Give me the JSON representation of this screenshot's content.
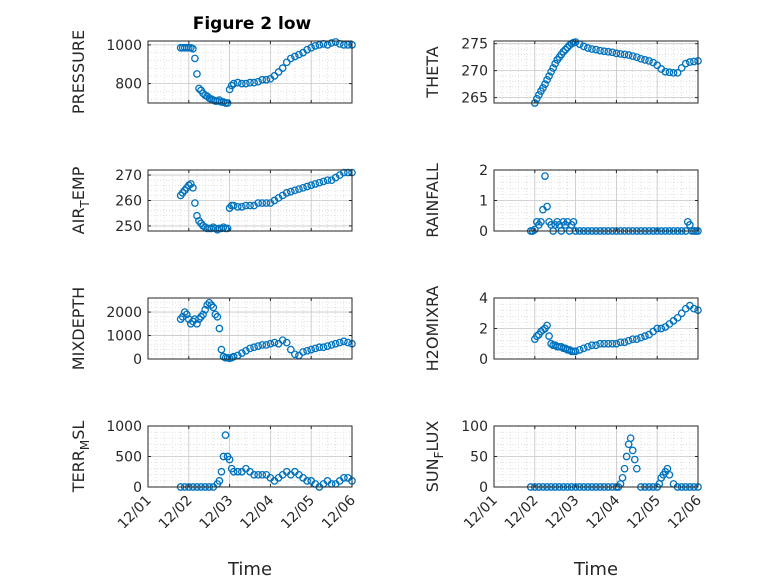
{
  "figure_title": "Figure 2 low",
  "marker_color": "#0072BD",
  "chart_data": [
    {
      "type": "scatter",
      "ylabel": "PRESSURE",
      "ylabel_sub": "",
      "ylim": [
        700,
        1020
      ],
      "yticks": [
        800,
        1000
      ],
      "title": "Figure 2 low",
      "x": [
        1.8,
        1.85,
        1.9,
        1.95,
        2.0,
        2.05,
        2.1,
        2.15,
        2.2,
        2.25,
        2.3,
        2.35,
        2.4,
        2.45,
        2.5,
        2.55,
        2.6,
        2.65,
        2.7,
        2.75,
        2.8,
        2.85,
        2.9,
        2.95,
        3.0,
        3.05,
        3.1,
        3.2,
        3.3,
        3.4,
        3.5,
        3.6,
        3.7,
        3.8,
        3.9,
        4.0,
        4.1,
        4.2,
        4.3,
        4.4,
        4.5,
        4.6,
        4.7,
        4.8,
        4.9,
        5.0,
        5.1,
        5.2,
        5.3,
        5.4,
        5.5,
        5.6,
        5.7,
        5.8,
        5.9,
        6.0
      ],
      "y": [
        985,
        985,
        985,
        985,
        985,
        985,
        980,
        930,
        850,
        775,
        765,
        750,
        740,
        735,
        725,
        720,
        715,
        710,
        710,
        715,
        705,
        705,
        700,
        700,
        770,
        790,
        800,
        805,
        800,
        800,
        805,
        805,
        810,
        820,
        820,
        825,
        840,
        860,
        880,
        910,
        930,
        940,
        950,
        960,
        975,
        985,
        995,
        1000,
        1005,
        1000,
        1010,
        1015,
        1005,
        1000,
        1000,
        1000
      ]
    },
    {
      "type": "scatter",
      "ylabel": "THETA",
      "ylabel_sub": "",
      "ylim": [
        264,
        275.5
      ],
      "yticks": [
        265,
        270,
        275
      ],
      "x": [
        2.0,
        2.05,
        2.1,
        2.15,
        2.2,
        2.25,
        2.3,
        2.35,
        2.4,
        2.45,
        2.5,
        2.55,
        2.6,
        2.65,
        2.7,
        2.75,
        2.8,
        2.85,
        2.9,
        2.95,
        3.0,
        3.1,
        3.2,
        3.3,
        3.4,
        3.5,
        3.6,
        3.7,
        3.8,
        3.9,
        4.0,
        4.1,
        4.2,
        4.3,
        4.4,
        4.5,
        4.6,
        4.7,
        4.8,
        4.9,
        5.0,
        5.1,
        5.2,
        5.3,
        5.4,
        5.5,
        5.6,
        5.7,
        5.8,
        5.9,
        6.0
      ],
      "y": [
        264,
        264.8,
        265.5,
        266.2,
        266.8,
        267.5,
        268.3,
        269,
        269.8,
        270.5,
        271.3,
        272,
        272.5,
        273,
        273.5,
        273.9,
        274.3,
        274.7,
        275,
        275.2,
        275.3,
        274.9,
        274.5,
        274.2,
        274,
        273.9,
        273.7,
        273.6,
        273.5,
        273.4,
        273.2,
        273.1,
        273,
        272.9,
        272.7,
        272.5,
        272.2,
        272,
        271.8,
        271.5,
        271,
        270.3,
        269.8,
        269.7,
        269.6,
        269.6,
        270.5,
        271.3,
        271.6,
        271.7,
        271.8
      ]
    },
    {
      "type": "scatter",
      "ylabel": "AIR",
      "ylabel_sub": "T",
      "ylabel_tail": "EMP",
      "ylim": [
        248,
        272
      ],
      "yticks": [
        250,
        260,
        270
      ],
      "x": [
        1.8,
        1.85,
        1.9,
        1.95,
        2.0,
        2.05,
        2.1,
        2.15,
        2.2,
        2.25,
        2.3,
        2.35,
        2.4,
        2.45,
        2.5,
        2.55,
        2.6,
        2.65,
        2.7,
        2.75,
        2.8,
        2.85,
        2.9,
        2.95,
        3.0,
        3.05,
        3.1,
        3.2,
        3.3,
        3.4,
        3.5,
        3.6,
        3.7,
        3.8,
        3.9,
        4.0,
        4.1,
        4.2,
        4.3,
        4.4,
        4.5,
        4.6,
        4.7,
        4.8,
        4.9,
        5.0,
        5.1,
        5.2,
        5.3,
        5.4,
        5.5,
        5.6,
        5.7,
        5.8,
        5.9,
        6.0
      ],
      "y": [
        262,
        263,
        264,
        265,
        266,
        266.5,
        265,
        259,
        254,
        252,
        251,
        250,
        249.5,
        249,
        249,
        249,
        249.5,
        249,
        248.5,
        249,
        249,
        249.5,
        249,
        249,
        257,
        258,
        258,
        257.5,
        257.5,
        258,
        258,
        258,
        259,
        259,
        259,
        259,
        260,
        261,
        262,
        263,
        263.5,
        264,
        264.5,
        265,
        265.5,
        266,
        266.5,
        267,
        267.5,
        268,
        268,
        269,
        270,
        271,
        271,
        271
      ]
    },
    {
      "type": "scatter",
      "ylabel": "RAINFALL",
      "ylabel_sub": "",
      "ylim": [
        0,
        2
      ],
      "yticks": [
        0,
        1,
        2
      ],
      "x": [
        1.9,
        1.95,
        2.0,
        2.05,
        2.1,
        2.15,
        2.2,
        2.25,
        2.3,
        2.35,
        2.4,
        2.45,
        2.5,
        2.55,
        2.6,
        2.65,
        2.7,
        2.75,
        2.8,
        2.85,
        2.9,
        2.95,
        3.0,
        3.1,
        3.2,
        3.3,
        3.4,
        3.5,
        3.6,
        3.7,
        3.8,
        3.9,
        4.0,
        4.1,
        4.2,
        4.3,
        4.4,
        4.5,
        4.6,
        4.7,
        4.8,
        4.9,
        5.0,
        5.1,
        5.2,
        5.3,
        5.4,
        5.5,
        5.6,
        5.7,
        5.75,
        5.8,
        5.85,
        5.9,
        5.95,
        6.0
      ],
      "y": [
        0,
        0,
        0.05,
        0.3,
        0.2,
        0.3,
        0.7,
        1.8,
        0.8,
        0.3,
        0.2,
        0,
        0.2,
        0.3,
        0.2,
        0,
        0.3,
        0.2,
        0.3,
        0,
        0.2,
        0.3,
        0,
        0,
        0,
        0,
        0,
        0,
        0,
        0,
        0,
        0,
        0,
        0,
        0,
        0,
        0,
        0,
        0,
        0,
        0,
        0,
        0,
        0,
        0,
        0,
        0,
        0,
        0,
        0,
        0.3,
        0.2,
        0,
        0,
        0,
        0
      ]
    },
    {
      "type": "scatter",
      "ylabel": "MIXDEPTH",
      "ylabel_sub": "",
      "ylim": [
        0,
        2600
      ],
      "yticks": [
        0,
        1000,
        2000
      ],
      "x": [
        1.8,
        1.85,
        1.9,
        1.95,
        2.0,
        2.05,
        2.1,
        2.15,
        2.2,
        2.25,
        2.3,
        2.35,
        2.4,
        2.45,
        2.5,
        2.55,
        2.6,
        2.65,
        2.7,
        2.75,
        2.8,
        2.85,
        2.9,
        2.95,
        3.0,
        3.05,
        3.1,
        3.2,
        3.3,
        3.4,
        3.5,
        3.6,
        3.7,
        3.8,
        3.9,
        4.0,
        4.1,
        4.2,
        4.3,
        4.4,
        4.5,
        4.6,
        4.7,
        4.8,
        4.9,
        5.0,
        5.1,
        5.2,
        5.3,
        5.4,
        5.5,
        5.6,
        5.7,
        5.8,
        5.9,
        6.0
      ],
      "y": [
        1700,
        1800,
        2000,
        1900,
        1700,
        1500,
        1600,
        1700,
        1500,
        1700,
        1800,
        1900,
        2100,
        2300,
        2400,
        2300,
        2200,
        1900,
        1800,
        1300,
        400,
        100,
        50,
        50,
        30,
        60,
        100,
        150,
        250,
        350,
        450,
        500,
        550,
        600,
        600,
        650,
        700,
        650,
        800,
        700,
        400,
        200,
        150,
        300,
        350,
        400,
        450,
        500,
        500,
        550,
        600,
        650,
        700,
        750,
        700,
        650
      ]
    },
    {
      "type": "scatter",
      "ylabel": "H2OMIXRA",
      "ylabel_sub": "",
      "ylim": [
        0,
        4
      ],
      "yticks": [
        0,
        2,
        4
      ],
      "x": [
        2.0,
        2.05,
        2.1,
        2.15,
        2.2,
        2.25,
        2.3,
        2.35,
        2.4,
        2.45,
        2.5,
        2.55,
        2.6,
        2.65,
        2.7,
        2.75,
        2.8,
        2.85,
        2.9,
        2.95,
        3.0,
        3.1,
        3.2,
        3.3,
        3.4,
        3.5,
        3.6,
        3.7,
        3.8,
        3.9,
        4.0,
        4.1,
        4.2,
        4.3,
        4.4,
        4.5,
        4.6,
        4.7,
        4.8,
        4.9,
        5.0,
        5.1,
        5.2,
        5.3,
        5.4,
        5.5,
        5.6,
        5.7,
        5.8,
        5.9,
        6.0
      ],
      "y": [
        1.3,
        1.5,
        1.6,
        1.8,
        1.9,
        2.0,
        2.2,
        1.5,
        1.0,
        0.9,
        0.9,
        0.8,
        0.8,
        0.8,
        0.7,
        0.7,
        0.6,
        0.6,
        0.5,
        0.5,
        0.5,
        0.6,
        0.7,
        0.8,
        0.9,
        0.9,
        1.0,
        1.0,
        1.0,
        1.0,
        1.0,
        1.1,
        1.1,
        1.2,
        1.3,
        1.3,
        1.4,
        1.5,
        1.6,
        1.8,
        2.0,
        2.0,
        2.1,
        2.3,
        2.5,
        2.7,
        3.0,
        3.3,
        3.5,
        3.3,
        3.2
      ]
    },
    {
      "type": "scatter",
      "ylabel": "TERR",
      "ylabel_sub": "M",
      "ylabel_tail": "SL",
      "ylim": [
        0,
        1000
      ],
      "yticks": [
        0,
        500,
        1000
      ],
      "x": [
        1.8,
        1.9,
        2.0,
        2.1,
        2.2,
        2.3,
        2.4,
        2.5,
        2.6,
        2.7,
        2.75,
        2.8,
        2.85,
        2.9,
        2.95,
        3.0,
        3.05,
        3.1,
        3.2,
        3.3,
        3.4,
        3.5,
        3.6,
        3.7,
        3.8,
        3.9,
        4.0,
        4.1,
        4.2,
        4.3,
        4.4,
        4.5,
        4.6,
        4.7,
        4.8,
        4.9,
        5.0,
        5.1,
        5.2,
        5.3,
        5.4,
        5.5,
        5.6,
        5.7,
        5.8,
        5.9,
        6.0
      ],
      "y": [
        0,
        0,
        0,
        0,
        0,
        0,
        0,
        0,
        0,
        50,
        100,
        250,
        500,
        850,
        500,
        450,
        300,
        250,
        250,
        250,
        300,
        250,
        200,
        200,
        200,
        200,
        150,
        100,
        150,
        200,
        250,
        200,
        250,
        200,
        150,
        100,
        100,
        50,
        0,
        50,
        100,
        50,
        50,
        100,
        150,
        150,
        100
      ]
    },
    {
      "type": "scatter",
      "ylabel": "SUN",
      "ylabel_sub": "F",
      "ylabel_tail": "LUX",
      "ylim": [
        0,
        100
      ],
      "yticks": [
        0,
        50,
        100
      ],
      "x": [
        1.9,
        2.0,
        2.1,
        2.2,
        2.3,
        2.4,
        2.5,
        2.6,
        2.7,
        2.8,
        2.9,
        3.0,
        3.1,
        3.2,
        3.3,
        3.4,
        3.5,
        3.6,
        3.7,
        3.8,
        3.9,
        4.0,
        4.05,
        4.1,
        4.15,
        4.2,
        4.25,
        4.3,
        4.35,
        4.4,
        4.45,
        4.5,
        4.6,
        4.7,
        4.8,
        4.9,
        5.0,
        5.05,
        5.1,
        5.15,
        5.2,
        5.25,
        5.3,
        5.4,
        5.5,
        5.6,
        5.7,
        5.8,
        5.9,
        6.0
      ],
      "y": [
        0,
        0,
        0,
        0,
        0,
        0,
        0,
        0,
        0,
        0,
        0,
        0,
        0,
        0,
        0,
        0,
        0,
        0,
        0,
        0,
        0,
        0,
        0,
        5,
        15,
        30,
        50,
        70,
        80,
        60,
        45,
        30,
        0,
        0,
        0,
        0,
        0,
        5,
        15,
        20,
        25,
        30,
        20,
        5,
        0,
        0,
        0,
        0,
        0,
        0
      ]
    }
  ],
  "x_axis": {
    "xlim": [
      1,
      6
    ],
    "tick_values": [
      1,
      2,
      3,
      4,
      5,
      6
    ],
    "tick_labels": [
      "12/01",
      "12/02",
      "12/03",
      "12/04",
      "12/05",
      "12/06"
    ],
    "label": "Time"
  }
}
